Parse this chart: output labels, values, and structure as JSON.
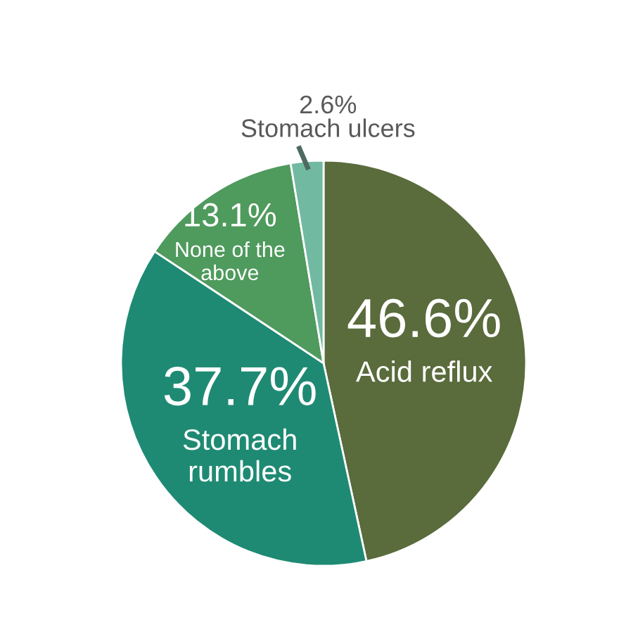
{
  "chart_data": {
    "type": "pie",
    "categories": [
      "Acid reflux",
      "Stomach rumbles",
      "None of the above",
      "Stomach ulcers"
    ],
    "values": [
      46.6,
      37.7,
      13.1,
      2.6
    ],
    "colors": [
      "#5a6b3c",
      "#1f8a73",
      "#4f9a5d",
      "#72b9a1"
    ],
    "value_labels": [
      "46.6%",
      "37.7%",
      "13.1%",
      "2.6%"
    ],
    "legend": false
  }
}
